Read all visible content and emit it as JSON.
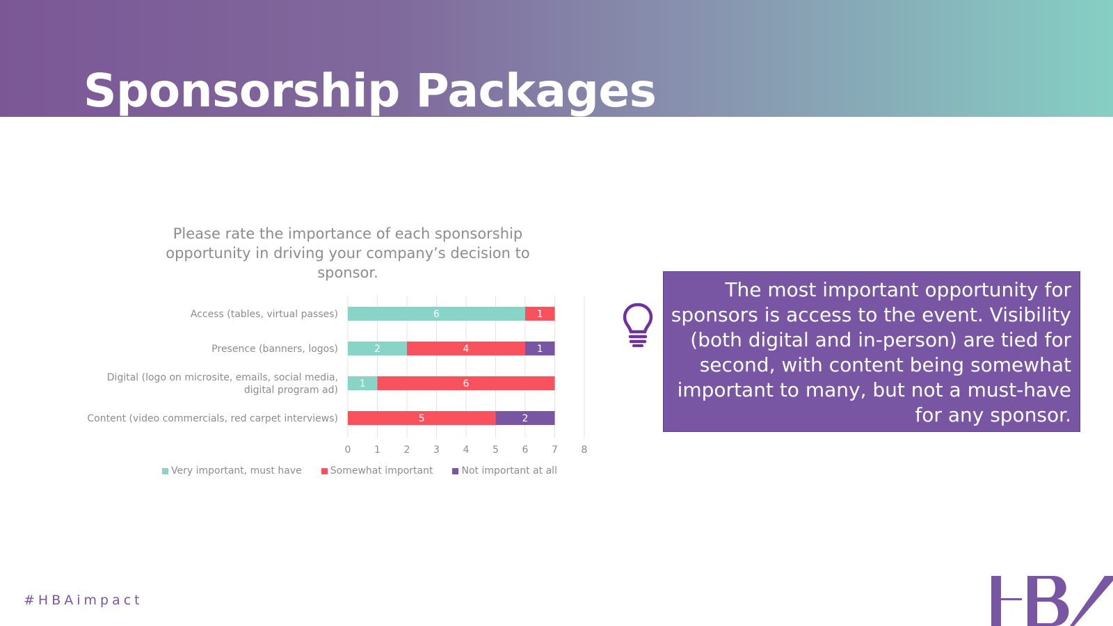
{
  "header": {
    "title": "Sponsorship Packages"
  },
  "chart_data": {
    "type": "bar",
    "orientation": "horizontal",
    "stacked": true,
    "title": "Please rate the importance of each sponsorship opportunity in driving your company’s decision to sponsor.",
    "categories": [
      "Access (tables, virtual passes)",
      "Presence (banners, logos)",
      "Digital (logo on microsite, emails, social media, digital program ad)",
      "Content (video commercials, red carpet interviews)"
    ],
    "category_lines": [
      [
        "Access (tables, virtual passes)"
      ],
      [
        "Presence (banners, logos)"
      ],
      [
        "Digital (logo on microsite, emails, social media,",
        "digital program ad)"
      ],
      [
        "Content (video commercials, red carpet interviews)"
      ]
    ],
    "series": [
      {
        "name": "Very important, must have",
        "color": "#88d5c8",
        "values": [
          6,
          2,
          1,
          0
        ]
      },
      {
        "name": "Somewhat important",
        "color": "#f9515e",
        "values": [
          1,
          4,
          6,
          5
        ]
      },
      {
        "name": "Not important at all",
        "color": "#7856a3",
        "values": [
          0,
          1,
          0,
          2
        ]
      }
    ],
    "xlim": [
      0,
      8
    ],
    "xticks": [
      "0",
      "1",
      "2",
      "3",
      "4",
      "5",
      "6",
      "7",
      "8"
    ],
    "grid": true,
    "legend": "bottom"
  },
  "callout": {
    "text": "The most important opportunity for sponsors is access to the event. Visibility (both digital and in-person) are tied for second, with content being somewhat important to many, but not a must-have for any sponsor.",
    "icon": "lightbulb-icon"
  },
  "footer": {
    "hashtag": "#HBAimpact",
    "logo": "HBA"
  }
}
